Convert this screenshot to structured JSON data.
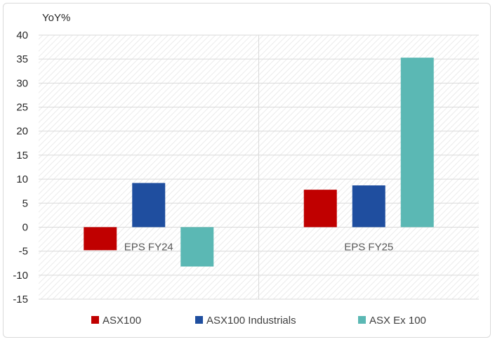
{
  "chart_data": {
    "type": "bar",
    "title": "",
    "ylabel": "YoY%",
    "xlabel": "",
    "ylim": [
      -15,
      40
    ],
    "yticks": [
      40,
      35,
      30,
      25,
      20,
      15,
      10,
      5,
      0,
      -5,
      -10,
      -15
    ],
    "categories": [
      "EPS FY24",
      "EPS FY25"
    ],
    "series": [
      {
        "name": "ASX100",
        "color": "#c00000",
        "values": [
          -4.8,
          7.8
        ]
      },
      {
        "name": "ASX100 Industrials",
        "color": "#1f4e9f",
        "values": [
          9.2,
          8.7
        ]
      },
      {
        "name": "ASX Ex 100",
        "color": "#5bb8b4",
        "values": [
          -8.2,
          35.3
        ]
      }
    ],
    "grid": true,
    "legend_position": "bottom"
  }
}
